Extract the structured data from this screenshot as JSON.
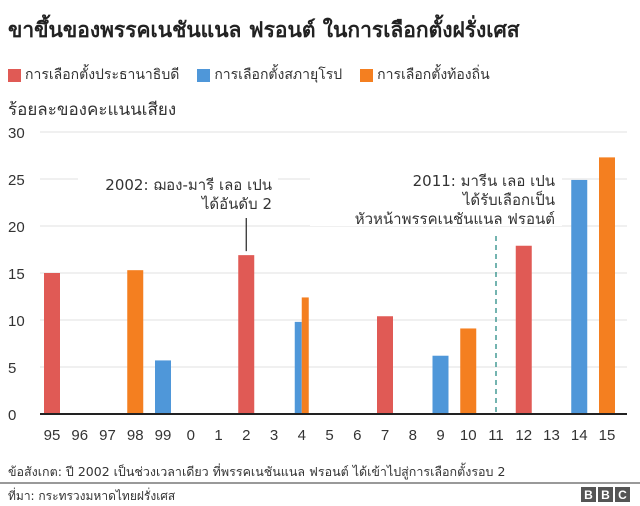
{
  "title": "ขาขึ้นของพรรคเนชันแนล ฟรอนต์ ในการเลือกตั้งฝรั่งเศส",
  "chart_data": {
    "type": "bar",
    "title": "ขาขึ้นของพรรคเนชันแนล ฟรอนต์ ในการเลือกตั้งฝรั่งเศส",
    "ylabel": "ร้อยละของคะแนนเสียง",
    "xlabel": "",
    "ylim": [
      0,
      30
    ],
    "yticks": [
      "0",
      "5",
      "10",
      "15",
      "20",
      "25",
      "30"
    ],
    "grid": true,
    "legend_placement": "top-left",
    "categories": [
      "95",
      "96",
      "97",
      "98",
      "99",
      "0",
      "1",
      "2",
      "3",
      "4",
      "5",
      "6",
      "7",
      "8",
      "9",
      "10",
      "11",
      "12",
      "13",
      "14",
      "15"
    ],
    "series": [
      {
        "name": "การเลือกตั้งประธานาธิบดี",
        "color": "#e05a55",
        "values": [
          15.0,
          null,
          null,
          null,
          null,
          null,
          null,
          16.9,
          null,
          null,
          null,
          null,
          10.4,
          null,
          null,
          null,
          null,
          17.9,
          null,
          null,
          null
        ]
      },
      {
        "name": "การเลือกตั้งสภายุโรป",
        "color": "#4f97d9",
        "values": [
          null,
          null,
          null,
          null,
          5.7,
          null,
          null,
          null,
          null,
          9.8,
          null,
          null,
          null,
          null,
          6.2,
          null,
          null,
          null,
          null,
          24.9,
          null
        ]
      },
      {
        "name": "การเลือกตั้งท้องถิ่น",
        "color": "#f47f20",
        "values": [
          null,
          null,
          null,
          15.3,
          null,
          null,
          null,
          null,
          null,
          12.4,
          null,
          null,
          null,
          null,
          null,
          9.1,
          null,
          null,
          null,
          null,
          27.3
        ]
      }
    ],
    "annotations": [
      {
        "category": "2",
        "lines": [
          "2002: ฌอง-มารี เลอ เปน",
          "ได้อันดับ 2"
        ]
      },
      {
        "category": "11",
        "lines": [
          "2011: มารีน เลอ เปน",
          "ได้รับเลือกเป็น",
          "หัวหน้าพรรคเนชันแนล ฟรอนต์"
        ],
        "marker": "dashed-line",
        "color": "#2a8c86"
      }
    ]
  },
  "footnote": "ข้อสังเกต: ปี 2002 เป็นช่วงเวลาเดียว ที่พรรคเนชันแนล ฟรอนต์ ได้เข้าไปสู่การเลือกตั้งรอบ 2",
  "source": "ที่มา: กระทรวงมหาดไทยฝรั่งเศส",
  "logo": [
    "B",
    "B",
    "C"
  ]
}
